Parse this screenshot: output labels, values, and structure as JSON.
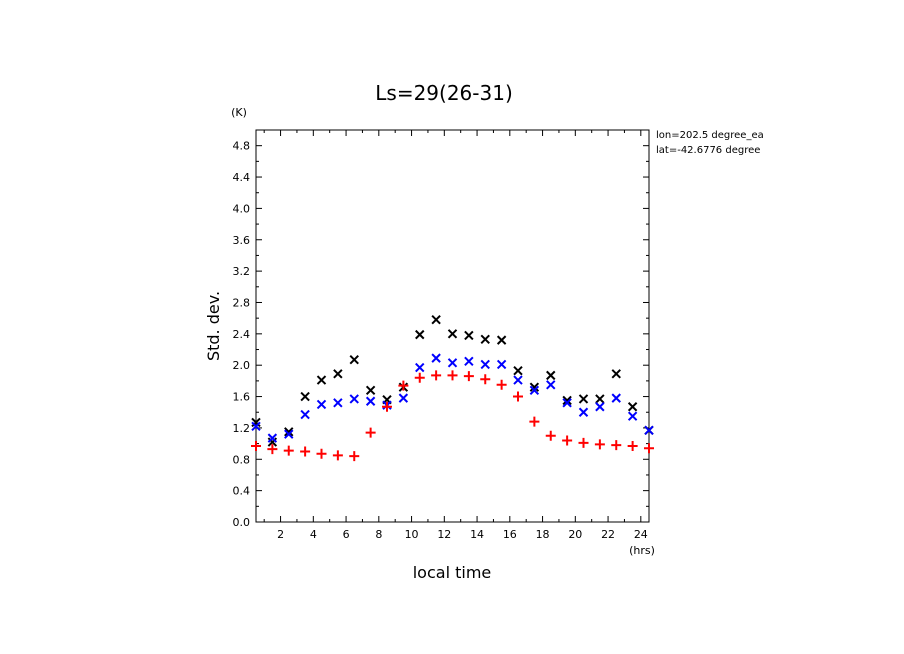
{
  "chart_data": {
    "type": "scatter",
    "title": "Ls=29(26-31)",
    "xlabel": "local time",
    "ylabel": "Std. dev.",
    "x_unit": "(hrs)",
    "y_unit": "(K)",
    "annotations": [
      "lon=202.5 degree_ea",
      "lat=-42.6776 degree"
    ],
    "xlim": [
      0.5,
      24.5
    ],
    "ylim": [
      0.0,
      5.0
    ],
    "x_ticks": [
      "2",
      "4",
      "6",
      "8",
      "10",
      "12",
      "14",
      "16",
      "18",
      "20",
      "22",
      "24"
    ],
    "y_ticks": [
      "0.0",
      "0.4",
      "0.8",
      "1.2",
      "1.6",
      "2.0",
      "2.4",
      "2.8",
      "3.2",
      "3.6",
      "4.0",
      "4.4",
      "4.8"
    ],
    "grid": false,
    "x": [
      0.5,
      1.5,
      2.5,
      3.5,
      4.5,
      5.5,
      6.5,
      7.5,
      8.5,
      9.5,
      10.5,
      11.5,
      12.5,
      13.5,
      14.5,
      15.5,
      16.5,
      17.5,
      18.5,
      19.5,
      20.5,
      21.5,
      22.5,
      23.5,
      24.5
    ],
    "series": [
      {
        "marker": "x",
        "color": "#000000",
        "values": [
          1.27,
          1.02,
          1.15,
          1.6,
          1.81,
          1.89,
          2.07,
          1.68,
          1.56,
          1.72,
          2.39,
          2.58,
          2.4,
          2.38,
          2.33,
          2.32,
          1.93,
          1.72,
          1.87,
          1.55,
          1.57,
          1.57,
          1.89,
          1.47,
          1.17
        ]
      },
      {
        "marker": "x",
        "color": "#0000ff",
        "values": [
          1.22,
          1.07,
          1.12,
          1.37,
          1.5,
          1.52,
          1.57,
          1.54,
          1.49,
          1.58,
          1.97,
          2.09,
          2.03,
          2.05,
          2.01,
          2.01,
          1.81,
          1.68,
          1.75,
          1.52,
          1.4,
          1.47,
          1.58,
          1.35,
          1.17
        ]
      },
      {
        "marker": "+",
        "color": "#ff0000",
        "values": [
          0.97,
          0.93,
          0.91,
          0.9,
          0.87,
          0.85,
          0.84,
          1.14,
          1.47,
          1.74,
          1.84,
          1.87,
          1.87,
          1.86,
          1.82,
          1.75,
          1.6,
          1.28,
          1.1,
          1.04,
          1.01,
          0.99,
          0.98,
          0.97,
          0.94
        ]
      }
    ]
  }
}
